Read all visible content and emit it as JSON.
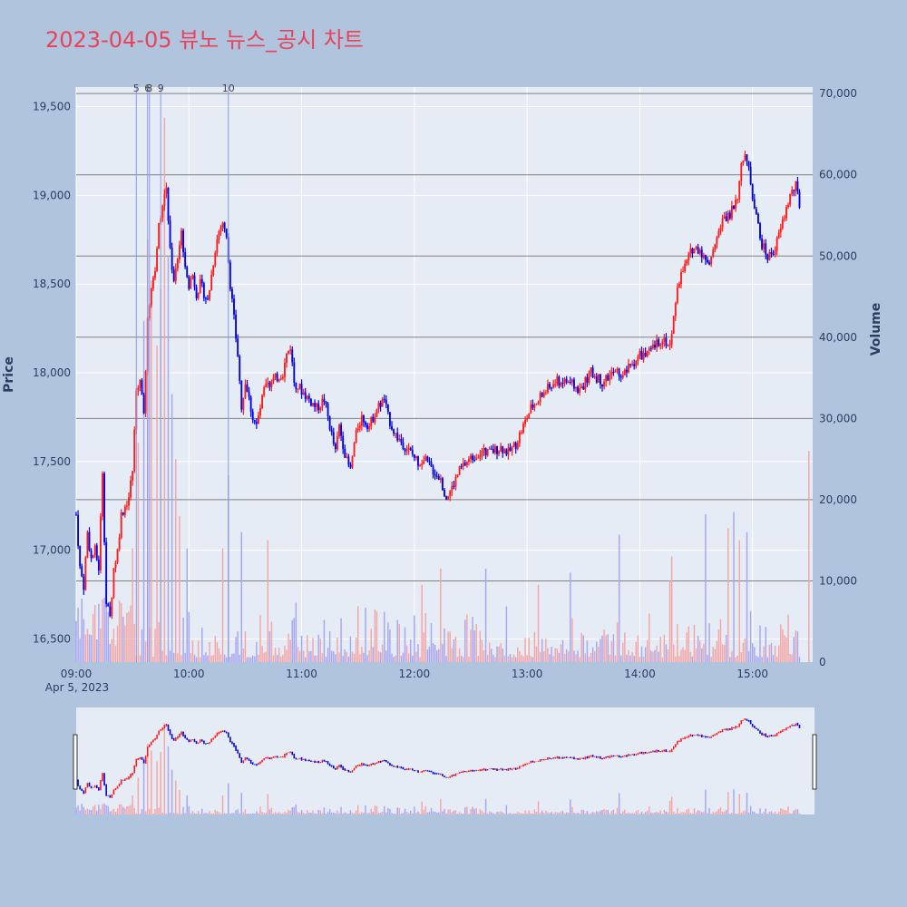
{
  "title": "2023-04-05 뷰노 뉴스_공시 차트",
  "colors": {
    "background": "#b0c4de",
    "plot_bg": "#e5ecf6",
    "up": "#ff1a1a",
    "down": "#0000ee",
    "vol_up": "#f4a6a6",
    "vol_down": "#a6a6f4",
    "hline": "#808080",
    "title": "#e8435a"
  },
  "chart_data": {
    "type": "candlestick",
    "date_label": "Apr 5, 2023",
    "ylabel": "Price",
    "y2label": "Volume",
    "ylim": [
      16370,
      19610
    ],
    "y2lim": [
      0,
      70800
    ],
    "xlim_minutes": [
      0,
      392
    ],
    "yticks": [
      16500,
      17000,
      17500,
      18000,
      18500,
      19000,
      19500
    ],
    "ytick_labels": [
      "16,500",
      "17,000",
      "17,500",
      "18,000",
      "18,500",
      "19,000",
      "19,500"
    ],
    "y2ticks": [
      0,
      10000,
      20000,
      30000,
      40000,
      50000,
      60000,
      70000
    ],
    "y2tick_labels": [
      "0",
      "10,000",
      "20,000",
      "30,000",
      "40,000",
      "50,000",
      "60,000",
      "70,000"
    ],
    "xticks_minutes": [
      0,
      60,
      120,
      180,
      240,
      300,
      360
    ],
    "xtick_labels": [
      "09:00",
      "10:00",
      "11:00",
      "12:00",
      "13:00",
      "14:00",
      "15:00"
    ],
    "volume_hlines": [
      10000,
      20000,
      30000,
      40000,
      50000,
      60000,
      70000
    ],
    "news_markers": [
      {
        "label": "5",
        "minute": 32
      },
      {
        "label": "6",
        "minute": 38
      },
      {
        "label": "8",
        "minute": 39
      },
      {
        "label": "9",
        "minute": 45
      },
      {
        "label": "10",
        "minute": 81
      }
    ],
    "price_anchors": [
      [
        0,
        17200
      ],
      [
        2,
        16900
      ],
      [
        4,
        16800
      ],
      [
        6,
        17100
      ],
      [
        8,
        16950
      ],
      [
        10,
        17000
      ],
      [
        12,
        16900
      ],
      [
        14,
        17450
      ],
      [
        16,
        16700
      ],
      [
        18,
        16620
      ],
      [
        20,
        16900
      ],
      [
        22,
        17000
      ],
      [
        24,
        17200
      ],
      [
        26,
        17250
      ],
      [
        28,
        17300
      ],
      [
        30,
        17450
      ],
      [
        32,
        17900
      ],
      [
        34,
        17950
      ],
      [
        36,
        17800
      ],
      [
        37,
        18000
      ],
      [
        38,
        18300
      ],
      [
        40,
        18500
      ],
      [
        42,
        18600
      ],
      [
        44,
        18850
      ],
      [
        46,
        18950
      ],
      [
        48,
        19050
      ],
      [
        50,
        18700
      ],
      [
        52,
        18500
      ],
      [
        54,
        18650
      ],
      [
        56,
        18800
      ],
      [
        58,
        18600
      ],
      [
        60,
        18500
      ],
      [
        62,
        18550
      ],
      [
        64,
        18450
      ],
      [
        66,
        18500
      ],
      [
        68,
        18450
      ],
      [
        70,
        18400
      ],
      [
        72,
        18550
      ],
      [
        74,
        18700
      ],
      [
        76,
        18800
      ],
      [
        78,
        18850
      ],
      [
        80,
        18750
      ],
      [
        82,
        18500
      ],
      [
        84,
        18300
      ],
      [
        86,
        18100
      ],
      [
        88,
        17800
      ],
      [
        90,
        17950
      ],
      [
        92,
        17850
      ],
      [
        94,
        17750
      ],
      [
        96,
        17700
      ],
      [
        98,
        17800
      ],
      [
        100,
        17900
      ],
      [
        104,
        17950
      ],
      [
        110,
        18000
      ],
      [
        112,
        18100
      ],
      [
        114,
        18150
      ],
      [
        116,
        17950
      ],
      [
        120,
        17900
      ],
      [
        124,
        17850
      ],
      [
        128,
        17800
      ],
      [
        132,
        17850
      ],
      [
        134,
        17750
      ],
      [
        136,
        17650
      ],
      [
        138,
        17550
      ],
      [
        140,
        17700
      ],
      [
        142,
        17600
      ],
      [
        144,
        17500
      ],
      [
        146,
        17450
      ],
      [
        148,
        17600
      ],
      [
        150,
        17700
      ],
      [
        152,
        17750
      ],
      [
        156,
        17700
      ],
      [
        160,
        17800
      ],
      [
        164,
        17850
      ],
      [
        166,
        17750
      ],
      [
        170,
        17650
      ],
      [
        174,
        17600
      ],
      [
        178,
        17550
      ],
      [
        182,
        17500
      ],
      [
        186,
        17500
      ],
      [
        190,
        17450
      ],
      [
        194,
        17400
      ],
      [
        197,
        17300
      ],
      [
        200,
        17350
      ],
      [
        204,
        17450
      ],
      [
        208,
        17500
      ],
      [
        214,
        17550
      ],
      [
        220,
        17550
      ],
      [
        226,
        17580
      ],
      [
        230,
        17550
      ],
      [
        234,
        17600
      ],
      [
        238,
        17700
      ],
      [
        242,
        17800
      ],
      [
        246,
        17850
      ],
      [
        250,
        17900
      ],
      [
        256,
        17950
      ],
      [
        262,
        17950
      ],
      [
        268,
        17900
      ],
      [
        274,
        18000
      ],
      [
        280,
        17950
      ],
      [
        286,
        18000
      ],
      [
        292,
        18000
      ],
      [
        296,
        18050
      ],
      [
        300,
        18100
      ],
      [
        304,
        18100
      ],
      [
        308,
        18150
      ],
      [
        312,
        18200
      ],
      [
        316,
        18150
      ],
      [
        318,
        18300
      ],
      [
        320,
        18500
      ],
      [
        324,
        18600
      ],
      [
        328,
        18700
      ],
      [
        332,
        18700
      ],
      [
        336,
        18600
      ],
      [
        340,
        18750
      ],
      [
        344,
        18850
      ],
      [
        348,
        18900
      ],
      [
        352,
        19000
      ],
      [
        354,
        19150
      ],
      [
        356,
        19250
      ],
      [
        358,
        19150
      ],
      [
        360,
        19000
      ],
      [
        362,
        18900
      ],
      [
        364,
        18750
      ],
      [
        366,
        18700
      ],
      [
        368,
        18650
      ],
      [
        372,
        18700
      ],
      [
        376,
        18850
      ],
      [
        380,
        19000
      ],
      [
        383,
        19050
      ],
      [
        385,
        18950
      ]
    ],
    "volume_spikes": [
      {
        "minute": 30,
        "value": 14000
      },
      {
        "minute": 33,
        "value": 27000
      },
      {
        "minute": 36,
        "value": 42000
      },
      {
        "minute": 38,
        "value": 52000
      },
      {
        "minute": 40,
        "value": 47000
      },
      {
        "minute": 43,
        "value": 39000
      },
      {
        "minute": 45,
        "value": 46000
      },
      {
        "minute": 47,
        "value": 67000
      },
      {
        "minute": 49,
        "value": 50000
      },
      {
        "minute": 51,
        "value": 33000
      },
      {
        "minute": 53,
        "value": 25000
      },
      {
        "minute": 55,
        "value": 18000
      },
      {
        "minute": 59,
        "value": 14000
      },
      {
        "minute": 78,
        "value": 14000
      },
      {
        "minute": 81,
        "value": 23000
      },
      {
        "minute": 88,
        "value": 16000
      },
      {
        "minute": 102,
        "value": 15000
      },
      {
        "minute": 184,
        "value": 9500
      },
      {
        "minute": 194,
        "value": 11500
      },
      {
        "minute": 218,
        "value": 11500
      },
      {
        "minute": 246,
        "value": 9500
      },
      {
        "minute": 263,
        "value": 11000
      },
      {
        "minute": 289,
        "value": 15700
      },
      {
        "minute": 316,
        "value": 10000
      },
      {
        "minute": 317,
        "value": 13000
      },
      {
        "minute": 335,
        "value": 18200
      },
      {
        "minute": 347,
        "value": 16500
      },
      {
        "minute": 350,
        "value": 18500
      },
      {
        "minute": 353,
        "value": 15000
      },
      {
        "minute": 357,
        "value": 16000
      },
      {
        "minute": 390,
        "value": 26000
      }
    ]
  }
}
